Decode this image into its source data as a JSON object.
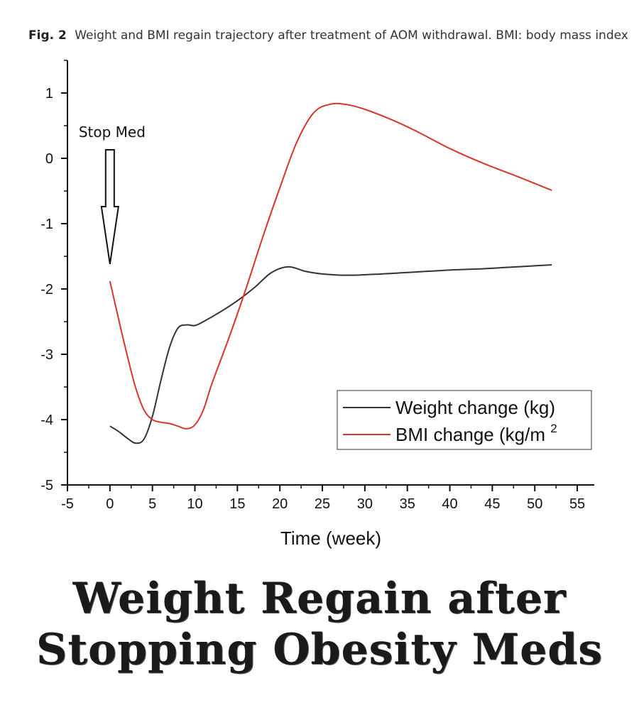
{
  "caption": {
    "label": "Fig. 2",
    "text": "Weight and BMI regain trajectory after treatment of AOM withdrawal. BMI: body mass index"
  },
  "headline": {
    "line1": "Weight Regain after",
    "line2": "Stopping Obesity Meds"
  },
  "chart_data": {
    "type": "line",
    "title": "",
    "xlabel": "Time (week)",
    "ylabel": "",
    "xlim": [
      -5,
      57
    ],
    "ylim": [
      -5,
      1.5
    ],
    "xticks": [
      -5,
      0,
      5,
      10,
      15,
      20,
      25,
      30,
      35,
      40,
      45,
      50,
      55
    ],
    "yticks": [
      1,
      0,
      -1,
      -2,
      -3,
      -4,
      -5
    ],
    "grid": false,
    "legend_position": "bottom-right",
    "series": [
      {
        "name": "Weight change (kg)",
        "color": "#333333",
        "x": [
          0,
          1,
          2,
          3,
          4,
          5,
          6,
          7,
          8,
          9,
          10,
          11,
          13,
          15,
          17,
          19,
          21,
          23,
          25,
          28,
          32,
          36,
          40,
          44,
          48,
          52
        ],
        "y": [
          -4.1,
          -4.18,
          -4.28,
          -4.36,
          -4.3,
          -3.95,
          -3.4,
          -2.9,
          -2.6,
          -2.55,
          -2.56,
          -2.5,
          -2.35,
          -2.18,
          -1.98,
          -1.75,
          -1.66,
          -1.73,
          -1.77,
          -1.79,
          -1.77,
          -1.74,
          -1.71,
          -1.69,
          -1.66,
          -1.63
        ]
      },
      {
        "name": "BMI change (kg/m",
        "superscript": "2",
        "color": "#d9342b",
        "x": [
          0,
          1,
          2,
          3,
          4,
          5,
          6,
          7,
          8,
          9,
          10,
          11,
          12,
          14,
          16,
          18,
          20,
          22,
          24,
          26,
          28,
          30,
          33,
          36,
          40,
          44,
          48,
          52
        ],
        "y": [
          -1.88,
          -2.45,
          -3.0,
          -3.5,
          -3.85,
          -4.0,
          -4.04,
          -4.06,
          -4.1,
          -4.14,
          -4.08,
          -3.85,
          -3.45,
          -2.75,
          -2.0,
          -1.2,
          -0.45,
          0.25,
          0.7,
          0.83,
          0.82,
          0.75,
          0.6,
          0.42,
          0.15,
          -0.08,
          -0.28,
          -0.49
        ]
      }
    ],
    "annotation": {
      "text": "Stop Med",
      "x": 0,
      "y": -1.62
    }
  },
  "colors": {
    "axis": "#111111",
    "background": "#ffffff"
  }
}
